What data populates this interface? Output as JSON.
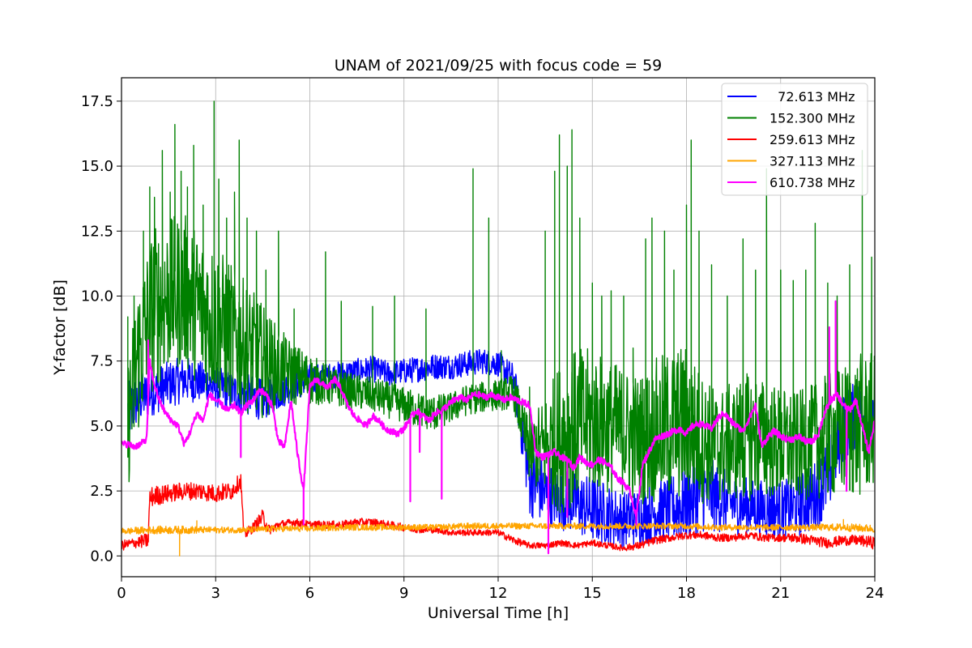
{
  "chart_data": {
    "type": "line",
    "title": "UNAM of 2021/09/25 with focus code = 59",
    "xlabel": "Universal Time [h]",
    "ylabel": "Y-factor [dB]",
    "xlim": [
      0,
      24
    ],
    "ylim": [
      -0.8,
      18.4
    ],
    "xticks": [
      0,
      3,
      6,
      9,
      12,
      15,
      18,
      21,
      24
    ],
    "yticks": [
      0.0,
      2.5,
      5.0,
      7.5,
      10.0,
      12.5,
      15.0,
      17.5
    ],
    "ytick_labels": [
      "0.0",
      "2.5",
      "5.0",
      "7.5",
      "10.0",
      "12.5",
      "15.0",
      "17.5"
    ],
    "grid": true,
    "legend_position": "top-right",
    "series": [
      {
        "name": "  72.613 MHz",
        "color": "#0000ff",
        "x": [
          0.2,
          0.5,
          1.0,
          1.5,
          2.0,
          2.5,
          3.0,
          3.5,
          4.0,
          4.5,
          5.0,
          5.5,
          6.0,
          6.5,
          7.0,
          7.5,
          8.0,
          8.5,
          9.0,
          9.5,
          10.0,
          10.5,
          11.0,
          11.5,
          12.0,
          12.5,
          13.0,
          13.5,
          14.0,
          14.5,
          15.0,
          15.5,
          16.0,
          16.5,
          17.0,
          17.5,
          18.0,
          18.5,
          19.0,
          19.5,
          20.0,
          20.5,
          21.0,
          21.5,
          22.0,
          22.5,
          23.0,
          23.5,
          24.0
        ],
        "y": [
          5.5,
          6.0,
          6.3,
          6.6,
          6.8,
          6.7,
          6.5,
          6.3,
          6.2,
          6.0,
          6.3,
          6.6,
          6.8,
          6.9,
          7.0,
          7.1,
          7.2,
          7.0,
          7.1,
          7.2,
          7.3,
          7.3,
          7.4,
          7.5,
          7.4,
          6.8,
          3.0,
          2.4,
          2.2,
          2.0,
          1.8,
          1.6,
          1.4,
          1.5,
          1.7,
          1.8,
          2.0,
          2.5,
          2.2,
          2.0,
          1.9,
          1.8,
          1.8,
          1.9,
          2.2,
          3.0,
          5.0,
          5.5,
          5.0
        ],
        "spread": [
          1.2,
          1.0,
          0.9,
          0.9,
          0.9,
          0.8,
          0.8,
          0.8,
          0.8,
          0.8,
          0.7,
          0.6,
          0.6,
          0.5,
          0.5,
          0.5,
          0.5,
          0.5,
          0.5,
          0.5,
          0.5,
          0.5,
          0.5,
          0.5,
          0.5,
          0.6,
          1.5,
          1.2,
          1.2,
          1.2,
          1.3,
          1.2,
          1.1,
          1.1,
          1.2,
          1.3,
          1.5,
          1.6,
          1.3,
          1.2,
          1.1,
          1.1,
          1.1,
          1.2,
          1.3,
          1.5,
          1.4,
          1.3,
          1.0
        ]
      },
      {
        "name": "152.300 MHz",
        "color": "#008000",
        "x": [
          0.2,
          0.5,
          1.0,
          1.5,
          2.0,
          2.5,
          3.0,
          3.5,
          4.0,
          4.5,
          5.0,
          5.5,
          6.0,
          6.5,
          7.0,
          7.5,
          8.0,
          8.5,
          9.0,
          9.5,
          10.0,
          10.5,
          11.0,
          11.5,
          12.0,
          12.5,
          13.0,
          13.5,
          14.0,
          14.5,
          15.0,
          15.5,
          16.0,
          16.5,
          17.0,
          17.5,
          18.0,
          18.5,
          19.0,
          19.5,
          20.0,
          20.5,
          21.0,
          21.5,
          22.0,
          22.5,
          23.0,
          23.5,
          24.0
        ],
        "y": [
          5.0,
          7.5,
          9.5,
          10.0,
          10.2,
          9.5,
          9.0,
          8.5,
          8.0,
          7.5,
          7.2,
          7.0,
          6.8,
          6.6,
          6.4,
          6.3,
          6.2,
          6.0,
          5.8,
          5.6,
          5.5,
          5.7,
          6.0,
          6.1,
          6.2,
          6.3,
          4.0,
          4.2,
          4.6,
          5.0,
          5.2,
          5.0,
          4.8,
          4.5,
          4.8,
          5.0,
          5.2,
          4.5,
          4.2,
          4.4,
          4.6,
          4.5,
          4.3,
          4.2,
          4.4,
          4.6,
          4.8,
          5.0,
          5.2
        ],
        "spread": [
          2.5,
          3.0,
          3.2,
          3.0,
          3.0,
          3.0,
          3.0,
          2.8,
          2.5,
          2.2,
          1.6,
          1.2,
          1.0,
          0.8,
          0.7,
          0.7,
          0.7,
          0.7,
          0.7,
          0.7,
          0.7,
          0.6,
          0.6,
          0.6,
          0.6,
          0.7,
          1.2,
          2.0,
          3.0,
          3.0,
          2.8,
          2.6,
          2.5,
          2.5,
          2.8,
          3.0,
          3.0,
          2.5,
          2.2,
          2.3,
          2.5,
          2.3,
          2.2,
          2.1,
          2.2,
          2.4,
          2.6,
          2.8,
          2.6
        ],
        "spikes": [
          [
            0.2,
            9.2
          ],
          [
            0.4,
            10.0
          ],
          [
            0.7,
            12.5
          ],
          [
            0.9,
            14.2
          ],
          [
            1.05,
            13.8
          ],
          [
            1.3,
            15.6
          ],
          [
            1.55,
            14.0
          ],
          [
            1.7,
            16.6
          ],
          [
            1.9,
            14.8
          ],
          [
            2.1,
            14.2
          ],
          [
            2.3,
            15.8
          ],
          [
            2.6,
            13.5
          ],
          [
            2.95,
            17.5
          ],
          [
            3.1,
            14.5
          ],
          [
            3.35,
            13.0
          ],
          [
            3.6,
            14.0
          ],
          [
            3.75,
            16.0
          ],
          [
            4.0,
            13.0
          ],
          [
            4.3,
            12.5
          ],
          [
            4.6,
            11.0
          ],
          [
            5.0,
            12.5
          ],
          [
            5.5,
            9.5
          ],
          [
            6.5,
            11.7
          ],
          [
            7.0,
            9.8
          ],
          [
            8.0,
            9.6
          ],
          [
            8.7,
            10.0
          ],
          [
            9.7,
            9.5
          ],
          [
            11.2,
            14.9
          ],
          [
            11.7,
            13.0
          ],
          [
            12.1,
            7.9
          ],
          [
            13.0,
            6.5
          ],
          [
            13.5,
            12.5
          ],
          [
            13.8,
            14.8
          ],
          [
            13.95,
            16.2
          ],
          [
            14.2,
            15.0
          ],
          [
            14.35,
            16.4
          ],
          [
            14.6,
            13.0
          ],
          [
            15.0,
            10.5
          ],
          [
            15.3,
            10.0
          ],
          [
            15.6,
            10.2
          ],
          [
            16.0,
            10.0
          ],
          [
            16.3,
            8.0
          ],
          [
            16.7,
            12.2
          ],
          [
            16.9,
            13.0
          ],
          [
            17.3,
            12.5
          ],
          [
            17.6,
            11.0
          ],
          [
            18.0,
            13.5
          ],
          [
            18.15,
            16.0
          ],
          [
            18.4,
            12.5
          ],
          [
            18.8,
            11.2
          ],
          [
            19.3,
            10.0
          ],
          [
            19.8,
            12.2
          ],
          [
            20.2,
            11.0
          ],
          [
            20.55,
            14.9
          ],
          [
            21.0,
            11.0
          ],
          [
            21.4,
            10.6
          ],
          [
            21.8,
            11.0
          ],
          [
            22.1,
            12.8
          ],
          [
            22.5,
            10.5
          ],
          [
            22.8,
            10.0
          ],
          [
            23.2,
            11.2
          ],
          [
            23.6,
            15.6
          ],
          [
            23.9,
            11.5
          ]
        ]
      },
      {
        "name": "259.613 MHz",
        "color": "#ff0000",
        "x": [
          0.0,
          0.4,
          0.85,
          0.9,
          1.0,
          1.5,
          2.0,
          2.5,
          3.0,
          3.5,
          3.8,
          3.9,
          4.2,
          4.5,
          4.7,
          5.0,
          5.5,
          6.0,
          6.5,
          7.0,
          7.5,
          8.0,
          8.5,
          9.0,
          9.5,
          10.0,
          10.5,
          11.0,
          11.5,
          12.0,
          12.5,
          13.0,
          13.5,
          14.0,
          14.5,
          15.0,
          15.5,
          16.0,
          16.5,
          17.0,
          17.5,
          18.0,
          18.5,
          19.0,
          19.5,
          20.0,
          20.5,
          21.0,
          21.5,
          22.0,
          22.5,
          23.0,
          23.5,
          24.0
        ],
        "y": [
          0.4,
          0.5,
          0.6,
          2.2,
          2.3,
          2.4,
          2.5,
          2.5,
          2.4,
          2.5,
          2.9,
          0.8,
          1.1,
          1.5,
          1.0,
          1.2,
          1.3,
          1.2,
          1.2,
          1.2,
          1.3,
          1.3,
          1.2,
          1.1,
          1.0,
          1.0,
          0.9,
          0.9,
          0.9,
          0.9,
          0.6,
          0.4,
          0.4,
          0.5,
          0.4,
          0.5,
          0.4,
          0.3,
          0.4,
          0.6,
          0.7,
          0.8,
          0.8,
          0.7,
          0.7,
          0.8,
          0.7,
          0.7,
          0.7,
          0.6,
          0.5,
          0.6,
          0.6,
          0.5
        ],
        "spread": [
          0.2,
          0.2,
          0.3,
          0.4,
          0.4,
          0.35,
          0.35,
          0.35,
          0.35,
          0.35,
          0.3,
          0.2,
          0.2,
          0.3,
          0.2,
          0.15,
          0.15,
          0.15,
          0.15,
          0.15,
          0.15,
          0.15,
          0.15,
          0.15,
          0.12,
          0.12,
          0.12,
          0.12,
          0.12,
          0.12,
          0.15,
          0.12,
          0.12,
          0.12,
          0.12,
          0.12,
          0.12,
          0.12,
          0.15,
          0.15,
          0.15,
          0.15,
          0.15,
          0.15,
          0.15,
          0.15,
          0.15,
          0.15,
          0.2,
          0.2,
          0.2,
          0.2,
          0.2,
          0.25
        ]
      },
      {
        "name": "327.113 MHz",
        "color": "#ffa500",
        "x": [
          0.0,
          1.0,
          2.0,
          3.0,
          4.0,
          5.0,
          6.0,
          7.0,
          8.0,
          9.0,
          10.0,
          11.0,
          12.0,
          13.0,
          14.0,
          15.0,
          16.0,
          17.0,
          18.0,
          19.0,
          20.0,
          21.0,
          22.0,
          23.0,
          24.0
        ],
        "y": [
          0.95,
          1.0,
          1.0,
          1.0,
          1.0,
          1.05,
          1.05,
          1.1,
          1.1,
          1.1,
          1.1,
          1.15,
          1.15,
          1.15,
          1.15,
          1.15,
          1.15,
          1.15,
          1.15,
          1.1,
          1.1,
          1.1,
          1.1,
          1.1,
          1.05
        ],
        "spread": [
          0.12,
          0.15,
          0.15,
          0.12,
          0.12,
          0.12,
          0.12,
          0.12,
          0.12,
          0.12,
          0.12,
          0.12,
          0.12,
          0.12,
          0.12,
          0.12,
          0.12,
          0.12,
          0.12,
          0.12,
          0.12,
          0.12,
          0.12,
          0.15,
          0.15
        ],
        "spikes": [
          [
            1.85,
            0.0
          ],
          [
            23.0,
            1.4
          ],
          [
            2.4,
            1.35
          ]
        ]
      },
      {
        "name": "610.738 MHz",
        "color": "#ff00ff",
        "x": [
          0.0,
          0.2,
          0.4,
          0.6,
          0.8,
          0.9,
          1.0,
          1.2,
          1.4,
          1.6,
          1.8,
          2.0,
          2.2,
          2.4,
          2.6,
          2.8,
          3.0,
          3.2,
          3.4,
          3.6,
          3.8,
          4.0,
          4.2,
          4.4,
          4.6,
          4.8,
          5.0,
          5.2,
          5.4,
          5.6,
          5.8,
          6.0,
          6.2,
          6.4,
          6.6,
          6.8,
          7.0,
          7.2,
          7.4,
          7.6,
          7.8,
          8.0,
          8.2,
          8.4,
          8.6,
          8.8,
          9.0,
          9.2,
          9.4,
          9.6,
          9.8,
          10.0,
          10.2,
          10.4,
          10.6,
          10.8,
          11.0,
          11.2,
          11.4,
          11.6,
          11.8,
          12.0,
          12.2,
          12.4,
          12.6,
          12.8,
          13.0,
          13.2,
          13.4,
          13.6,
          13.8,
          14.0,
          14.2,
          14.4,
          14.6,
          14.8,
          15.0,
          15.2,
          15.4,
          15.6,
          15.8,
          16.0,
          16.2,
          16.4,
          16.6,
          16.8,
          17.0,
          17.2,
          17.4,
          17.6,
          17.8,
          18.0,
          18.2,
          18.4,
          18.6,
          18.8,
          19.0,
          19.2,
          19.4,
          19.6,
          19.8,
          20.0,
          20.2,
          20.4,
          20.6,
          20.8,
          21.0,
          21.2,
          21.4,
          21.6,
          21.8,
          22.0,
          22.2,
          22.4,
          22.6,
          22.8,
          23.0,
          23.2,
          23.4,
          23.6,
          23.8,
          24.0
        ],
        "y": [
          4.3,
          4.3,
          4.2,
          4.3,
          4.5,
          7.5,
          6.8,
          6.0,
          5.5,
          5.2,
          5.0,
          4.3,
          4.8,
          5.5,
          5.2,
          6.2,
          6.0,
          5.8,
          5.6,
          5.8,
          5.5,
          5.8,
          6.0,
          6.4,
          6.2,
          5.8,
          4.4,
          4.2,
          6.0,
          4.0,
          2.5,
          6.5,
          6.8,
          6.6,
          6.5,
          6.8,
          6.4,
          5.8,
          5.4,
          5.2,
          5.0,
          5.4,
          5.2,
          4.9,
          4.8,
          4.7,
          4.9,
          5.3,
          5.6,
          5.4,
          5.2,
          5.5,
          5.6,
          5.8,
          6.0,
          6.1,
          6.0,
          6.2,
          6.2,
          6.1,
          6.2,
          6.1,
          6.0,
          6.1,
          6.0,
          5.9,
          5.8,
          4.0,
          3.8,
          3.9,
          4.0,
          3.8,
          3.7,
          3.4,
          3.8,
          3.6,
          3.5,
          3.7,
          3.6,
          3.4,
          3.0,
          2.8,
          2.5,
          1.5,
          3.5,
          4.0,
          4.5,
          4.6,
          4.7,
          4.8,
          4.9,
          4.7,
          5.0,
          5.1,
          5.0,
          4.9,
          5.3,
          5.5,
          5.2,
          5.0,
          4.8,
          5.3,
          5.8,
          4.2,
          4.6,
          4.8,
          4.6,
          4.5,
          4.5,
          4.6,
          4.4,
          4.4,
          4.7,
          5.5,
          6.0,
          6.2,
          5.8,
          5.6,
          6.0,
          5.0,
          4.0,
          5.2
        ],
        "spikes": [
          [
            0.85,
            8.3
          ],
          [
            3.8,
            3.8
          ],
          [
            5.8,
            1.2
          ],
          [
            9.2,
            2.1
          ],
          [
            9.5,
            4.0
          ],
          [
            10.2,
            2.2
          ],
          [
            13.6,
            0.1
          ],
          [
            14.2,
            1.5
          ],
          [
            16.4,
            1.2
          ],
          [
            22.55,
            8.8
          ],
          [
            22.75,
            9.8
          ],
          [
            23.1,
            2.5
          ]
        ]
      }
    ]
  }
}
